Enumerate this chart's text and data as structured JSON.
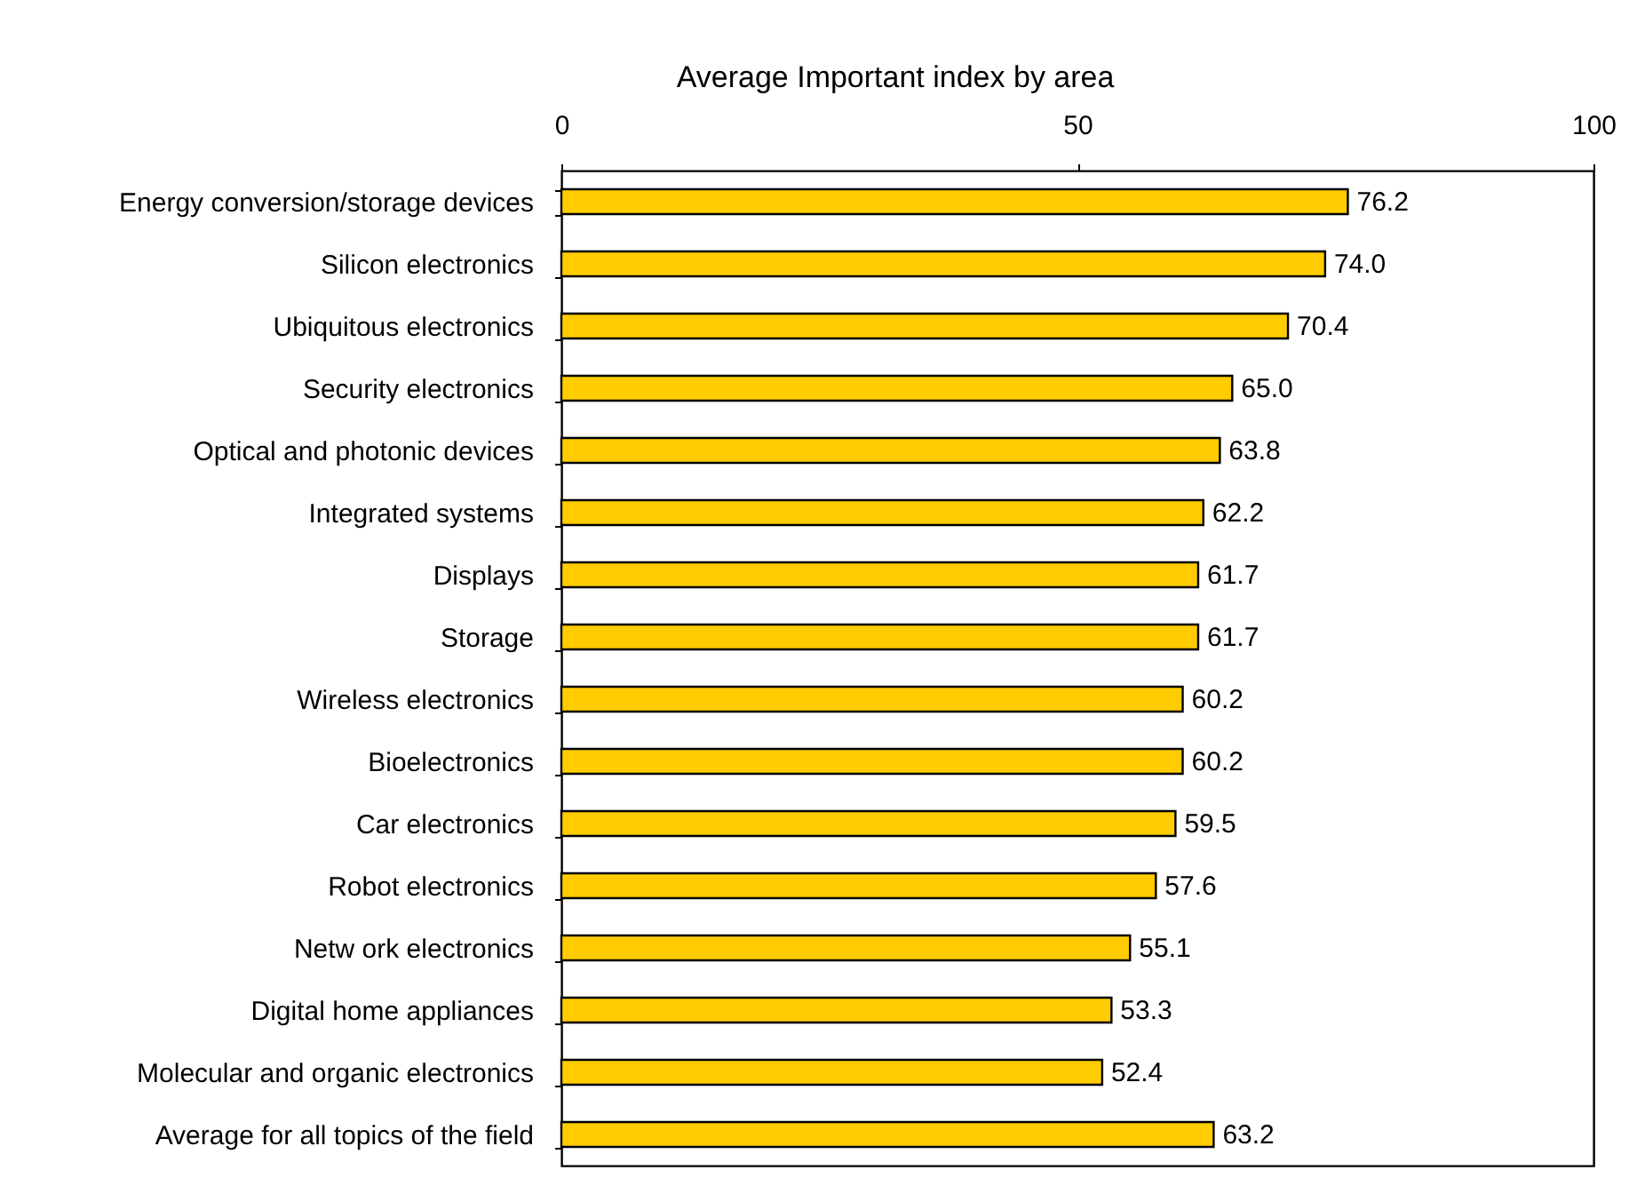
{
  "chart_data": {
    "type": "bar",
    "orientation": "horizontal",
    "title": "Average Important index by area",
    "categories": [
      "Energy conversion/storage devices",
      "Silicon electronics",
      "Ubiquitous electronics",
      "Security electronics",
      "Optical and photonic devices",
      "Integrated systems",
      "Displays",
      "Storage",
      "Wireless electronics",
      "Bioelectronics",
      "Car electronics",
      "Robot electronics",
      "Netw ork electronics",
      "Digital home appliances",
      "Molecular and organic electronics",
      "Average for all topics of the field"
    ],
    "values": [
      76.2,
      74.0,
      70.4,
      65.0,
      63.8,
      62.2,
      61.7,
      61.7,
      60.2,
      60.2,
      59.5,
      57.6,
      55.1,
      53.3,
      52.4,
      63.2
    ],
    "value_labels": [
      "76.2",
      "74.0",
      "70.4",
      "65.0",
      "63.8",
      "62.2",
      "61.7",
      "61.7",
      "60.2",
      "60.2",
      "59.5",
      "57.6",
      "55.1",
      "53.3",
      "52.4",
      "63.2"
    ],
    "color": "#ffcc00",
    "xlim": [
      0,
      100
    ],
    "xticks": [
      0,
      50,
      100
    ],
    "grid": false
  }
}
